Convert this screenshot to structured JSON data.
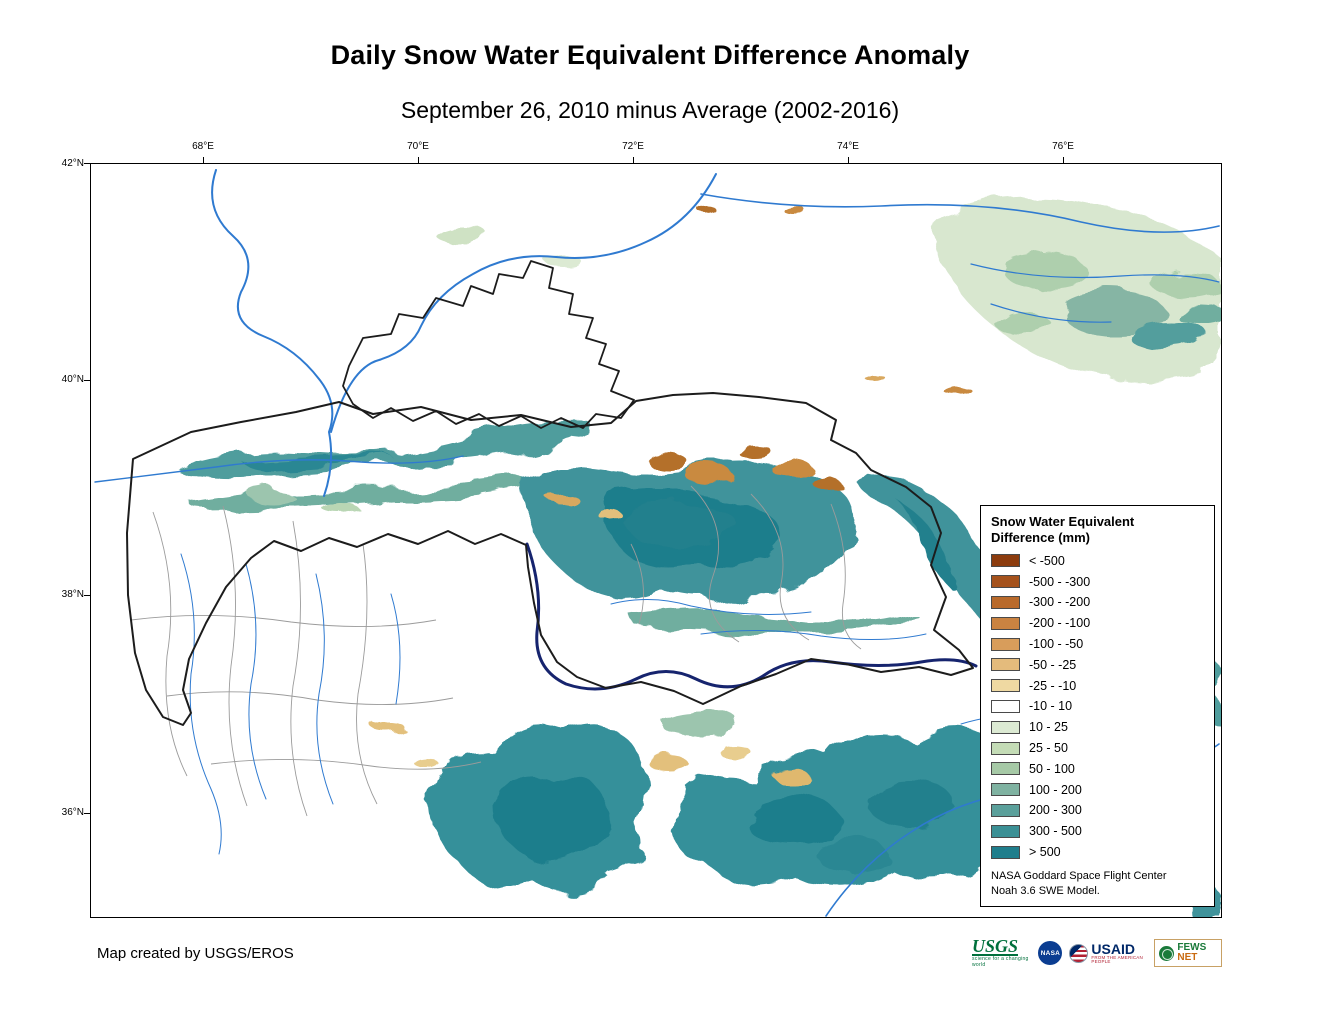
{
  "title": "Daily Snow Water Equivalent Difference Anomaly",
  "subtitle": "September 26, 2010 minus Average (2002-2016)",
  "map": {
    "lon_labels": [
      "68°E",
      "70°E",
      "72°E",
      "74°E",
      "76°E"
    ],
    "lat_labels": [
      "42°N",
      "40°N",
      "38°N",
      "36°N"
    ]
  },
  "legend": {
    "title_line1": "Snow Water Equivalent",
    "title_line2": "Difference (mm)",
    "classes": [
      {
        "label": "< -500",
        "color": "#8c3c0e"
      },
      {
        "label": "-500 - -300",
        "color": "#a5521c"
      },
      {
        "label": "-300 - -200",
        "color": "#b96a2b"
      },
      {
        "label": "-200 - -100",
        "color": "#ca8341"
      },
      {
        "label": "-100 - -50",
        "color": "#d89d5b"
      },
      {
        "label": "-50 - -25",
        "color": "#e4bb7c"
      },
      {
        "label": "-25 - -10",
        "color": "#efd9a2"
      },
      {
        "label": "-10 - 10",
        "color": "#ffffff"
      },
      {
        "label": "10 - 25",
        "color": "#dcead3"
      },
      {
        "label": "25 - 50",
        "color": "#c4dcb6"
      },
      {
        "label": "50 - 100",
        "color": "#a6c9a6"
      },
      {
        "label": "100 - 200",
        "color": "#7fb2a1"
      },
      {
        "label": "200 - 300",
        "color": "#5ba09b"
      },
      {
        "label": "300 - 500",
        "color": "#3b9095"
      },
      {
        "label": "> 500",
        "color": "#1f7e8c"
      }
    ],
    "note_line1": "NASA Goddard Space Flight Center",
    "note_line2": "Noah 3.6 SWE Model."
  },
  "footer": {
    "credit": "Map created by USGS/EROS",
    "logos": {
      "usgs": {
        "name": "USGS",
        "tagline": "science for a changing world"
      },
      "nasa": {
        "name": "NASA"
      },
      "usaid": {
        "name": "USAID",
        "tagline": "FROM THE AMERICAN PEOPLE"
      },
      "fews": {
        "name_part1": "FEWS ",
        "name_part2": "NET"
      }
    }
  },
  "colors": {
    "river": "#2f7ad0",
    "major_river": "#16246e",
    "country_border": "#1c1c1c",
    "admin_border": "#9b9b9b"
  }
}
